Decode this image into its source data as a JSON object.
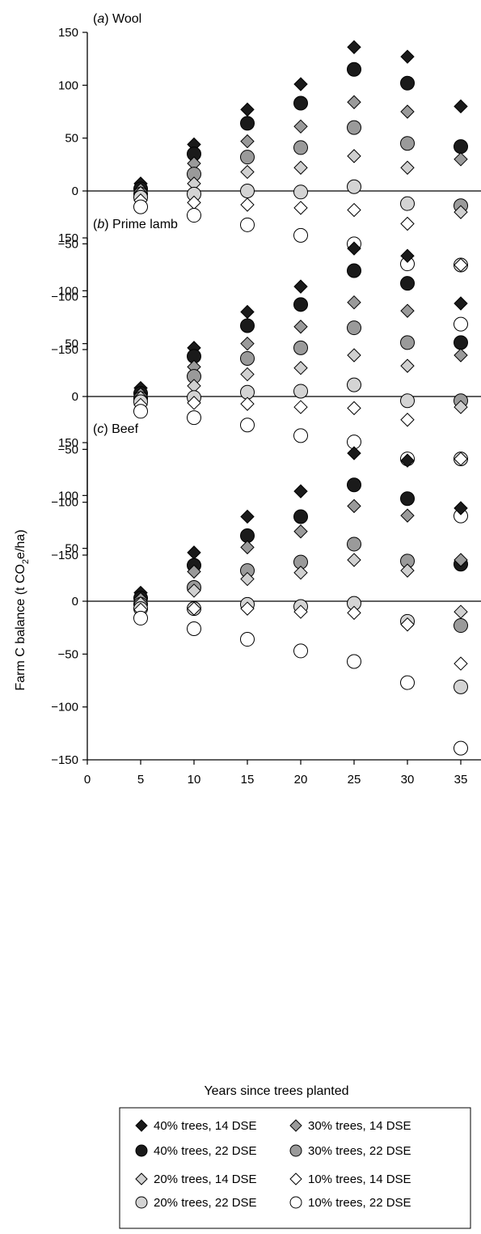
{
  "figure": {
    "ylabel": "Farm C balance (t CO",
    "ylabel_sub": "2",
    "ylabel_tail": "e/ha)",
    "xlabel": "Years since trees planted"
  },
  "chart_data": [
    {
      "type": "scatter",
      "panel_letter": "a",
      "panel_name": "Wool",
      "x": [
        5,
        10,
        15,
        20,
        25,
        30,
        35
      ],
      "ylim": [
        -150,
        150
      ],
      "yticks": [
        -150,
        -100,
        -50,
        0,
        50,
        100,
        150
      ],
      "series": [
        {
          "name": "40% trees, 14 DSE",
          "marker": "diamond",
          "fill": "#1a1a1a",
          "values": [
            7,
            44,
            77,
            101,
            136,
            127,
            80
          ]
        },
        {
          "name": "40% trees, 22 DSE",
          "marker": "circle",
          "fill": "#1a1a1a",
          "values": [
            2,
            35,
            64,
            83,
            115,
            102,
            42
          ]
        },
        {
          "name": "30% trees, 14 DSE",
          "marker": "diamond",
          "fill": "#9a9a9a",
          "values": [
            1,
            26,
            47,
            61,
            84,
            75,
            30
          ]
        },
        {
          "name": "30% trees, 22 DSE",
          "marker": "circle",
          "fill": "#9a9a9a",
          "values": [
            -3,
            16,
            32,
            41,
            60,
            45,
            -14
          ]
        },
        {
          "name": "20% trees, 14 DSE",
          "marker": "diamond",
          "fill": "#d0d0d0",
          "values": [
            -2,
            7,
            18,
            22,
            33,
            22,
            -20
          ]
        },
        {
          "name": "20% trees, 22 DSE",
          "marker": "circle",
          "fill": "#d4d4d4",
          "values": [
            -6,
            -3,
            0,
            -1,
            4,
            -12,
            -70
          ]
        },
        {
          "name": "10% trees, 14 DSE",
          "marker": "diamond",
          "fill": "#ffffff",
          "values": [
            -9,
            -11,
            -13,
            -16,
            -18,
            -31,
            -70
          ]
        },
        {
          "name": "10% trees, 22 DSE",
          "marker": "circle",
          "fill": "#ffffff",
          "values": [
            -15,
            -23,
            -32,
            -42,
            -50,
            -69,
            -126
          ]
        }
      ]
    },
    {
      "type": "scatter",
      "panel_letter": "b",
      "panel_name": "Prime lamb",
      "x": [
        5,
        10,
        15,
        20,
        25,
        30,
        35
      ],
      "ylim": [
        -150,
        150
      ],
      "yticks": [
        -150,
        -100,
        -50,
        0,
        50,
        100,
        150
      ],
      "series": [
        {
          "name": "40% trees, 14 DSE",
          "marker": "diamond",
          "fill": "#1a1a1a",
          "values": [
            8,
            46,
            80,
            104,
            140,
            133,
            88
          ]
        },
        {
          "name": "40% trees, 22 DSE",
          "marker": "circle",
          "fill": "#1a1a1a",
          "values": [
            3,
            38,
            67,
            87,
            119,
            107,
            51
          ]
        },
        {
          "name": "30% trees, 14 DSE",
          "marker": "diamond",
          "fill": "#9a9a9a",
          "values": [
            2,
            28,
            50,
            66,
            89,
            81,
            39
          ]
        },
        {
          "name": "30% trees, 22 DSE",
          "marker": "circle",
          "fill": "#9a9a9a",
          "values": [
            -2,
            19,
            36,
            46,
            65,
            51,
            -4
          ]
        },
        {
          "name": "20% trees, 14 DSE",
          "marker": "diamond",
          "fill": "#d0d0d0",
          "values": [
            -1,
            10,
            21,
            27,
            39,
            29,
            -10
          ]
        },
        {
          "name": "20% trees, 22 DSE",
          "marker": "circle",
          "fill": "#d4d4d4",
          "values": [
            -5,
            -1,
            4,
            5,
            11,
            -4,
            -59
          ]
        },
        {
          "name": "10% trees, 14 DSE",
          "marker": "diamond",
          "fill": "#ffffff",
          "values": [
            -8,
            -6,
            -7,
            -10,
            -11,
            -22,
            -59
          ]
        },
        {
          "name": "10% trees, 22 DSE",
          "marker": "circle",
          "fill": "#ffffff",
          "values": [
            -14,
            -20,
            -27,
            -37,
            -43,
            -59,
            -113
          ]
        }
      ]
    },
    {
      "type": "scatter",
      "panel_letter": "c",
      "panel_name": "Beef",
      "x": [
        5,
        10,
        15,
        20,
        25,
        30,
        35
      ],
      "ylim": [
        -150,
        150
      ],
      "yticks": [
        -150,
        -100,
        -50,
        0,
        50,
        100,
        150
      ],
      "xticks": [
        0,
        5,
        10,
        15,
        20,
        25,
        30,
        35
      ],
      "series": [
        {
          "name": "40% trees, 14 DSE",
          "marker": "diamond",
          "fill": "#1a1a1a",
          "values": [
            8,
            46,
            80,
            104,
            140,
            133,
            88
          ]
        },
        {
          "name": "40% trees, 22 DSE",
          "marker": "circle",
          "fill": "#1a1a1a",
          "values": [
            3,
            34,
            62,
            80,
            110,
            97,
            35
          ]
        },
        {
          "name": "30% trees, 14 DSE",
          "marker": "diamond",
          "fill": "#9a9a9a",
          "values": [
            2,
            28,
            51,
            66,
            90,
            81,
            39
          ]
        },
        {
          "name": "30% trees, 22 DSE",
          "marker": "circle",
          "fill": "#9a9a9a",
          "values": [
            -3,
            13,
            29,
            37,
            54,
            38,
            -23
          ]
        },
        {
          "name": "20% trees, 14 DSE",
          "marker": "diamond",
          "fill": "#d0d0d0",
          "values": [
            -2,
            10,
            21,
            27,
            39,
            29,
            -10
          ]
        },
        {
          "name": "20% trees, 22 DSE",
          "marker": "circle",
          "fill": "#d4d4d4",
          "values": [
            -7,
            -7,
            -3,
            -5,
            -2,
            -19,
            -81
          ]
        },
        {
          "name": "10% trees, 14 DSE",
          "marker": "diamond",
          "fill": "#ffffff",
          "values": [
            -8,
            -7,
            -7,
            -10,
            -11,
            -22,
            -59
          ]
        },
        {
          "name": "10% trees, 22 DSE",
          "marker": "circle",
          "fill": "#ffffff",
          "values": [
            -16,
            -26,
            -36,
            -47,
            -57,
            -77,
            -139
          ]
        }
      ]
    }
  ]
}
